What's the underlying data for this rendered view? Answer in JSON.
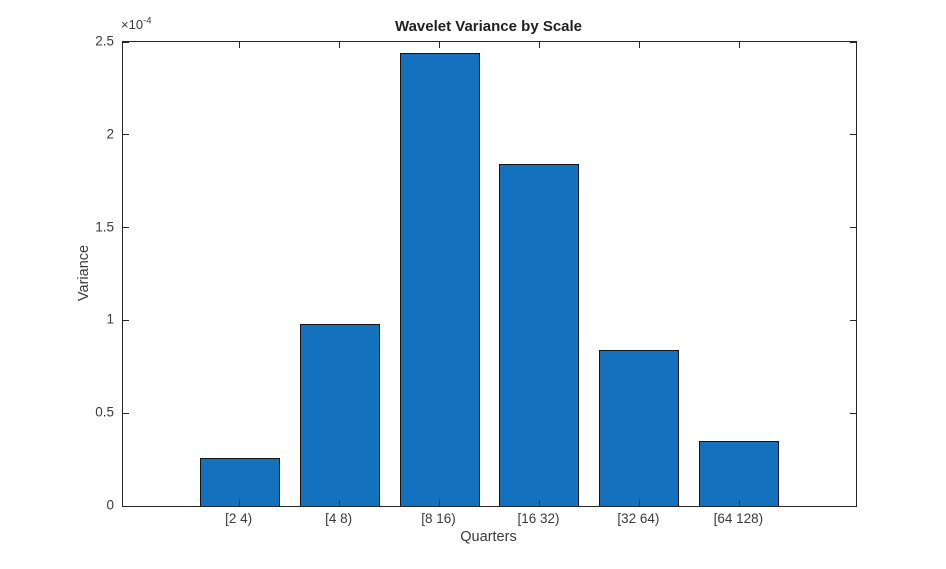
{
  "figure": {
    "background": "#ffffff"
  },
  "chart_data": {
    "type": "bar",
    "title": "Wavelet Variance by Scale",
    "xlabel": "Quarters",
    "ylabel": "Variance",
    "y_multiplier_base": "×10",
    "y_multiplier_exponent": "-4",
    "categories": [
      "[2 4)",
      "[4 8)",
      "[8 16)",
      "[16 32)",
      "[32 64)",
      "[64 128)"
    ],
    "values": [
      0.26,
      0.98,
      2.44,
      1.84,
      0.84,
      0.35
    ],
    "value_unit_scale": "1e-4",
    "ylim": [
      0,
      2.5
    ],
    "yticks": [
      0,
      0.5,
      1,
      1.5,
      2,
      2.5
    ],
    "ytick_labels": [
      "0",
      "0.5",
      "1",
      "1.5",
      "2",
      "2.5"
    ],
    "grid": false,
    "legend_position": "none",
    "bar_color": "#1471bd",
    "bar_edge_color": "#141414",
    "axis_color": "#262626"
  }
}
